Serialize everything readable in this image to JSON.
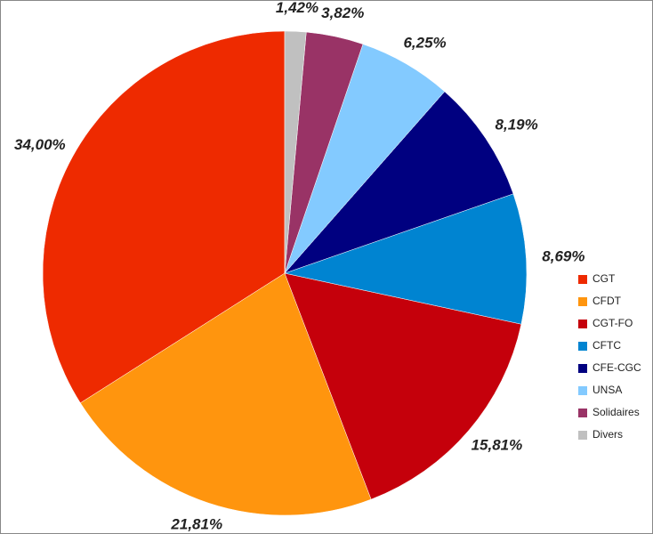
{
  "chart_data": {
    "type": "pie",
    "categories": [
      "CGT",
      "CFDT",
      "CGT-FO",
      "CFTC",
      "CFE-CGC",
      "UNSA",
      "Solidaires",
      "Divers"
    ],
    "values": [
      34.0,
      21.81,
      15.81,
      8.69,
      8.19,
      6.25,
      3.82,
      1.42
    ],
    "value_labels": [
      "34,00%",
      "21,81%",
      "15,81%",
      "8,69%",
      "8,19%",
      "6,25%",
      "3,82%",
      "1,42%"
    ],
    "colors": [
      "#ee2a00",
      "#ff950e",
      "#c5000b",
      "#0084d1",
      "#000080",
      "#83caff",
      "#993366",
      "#c0c0c0"
    ],
    "legend": "right"
  }
}
